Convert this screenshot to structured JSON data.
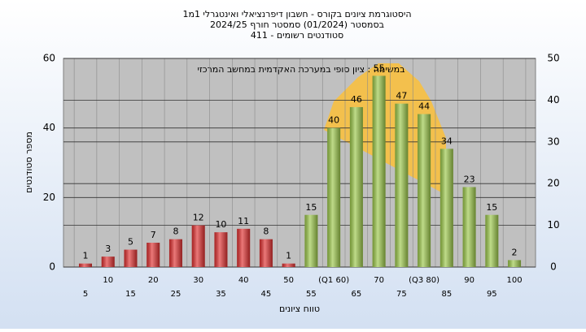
{
  "chart_data": {
    "type": "bar",
    "title": "היסטוגרמת ציונים בקורס - חשבון דיפרנציאלי ואינטגרלי 1מ1",
    "subtitle": "בסמסטר  (01/2024)  סמסטר חורף 2024/25",
    "subtitle2": "סטודנטים רשומים - 411",
    "annotation": "במשימה : ציון סופי במערכת האקדמית במחשב המרכזי",
    "y_label": "מספר סטודנטים",
    "x_label": "טווח ציונים",
    "categories": [
      "5",
      "10",
      "15",
      "20",
      "25",
      "30",
      "35",
      "40",
      "45",
      "50",
      "55",
      "(Q1 60)",
      "65",
      "70",
      "75",
      "(Q3 80)",
      "85",
      "90",
      "95",
      "100"
    ],
    "values": [
      1,
      3,
      5,
      7,
      8,
      12,
      10,
      11,
      8,
      1,
      15,
      40,
      46,
      55,
      47,
      44,
      34,
      23,
      15,
      2
    ],
    "colors": [
      "#e03030",
      "#e03030",
      "#e03030",
      "#e03030",
      "#e03030",
      "#e03030",
      "#e03030",
      "#e03030",
      "#e03030",
      "#e03030",
      "#9cc84a",
      "#9cc84a",
      "#9cc84a",
      "#9cc84a",
      "#9cc84a",
      "#9cc84a",
      "#9cc84a",
      "#9cc84a",
      "#9cc84a",
      "#9cc84a"
    ],
    "ylim": [
      0,
      60
    ],
    "yticks": [
      0,
      20,
      40,
      60
    ],
    "y2lim": [
      0,
      50
    ],
    "y2ticks": [
      0,
      10,
      20,
      30,
      40,
      50
    ],
    "grid": true
  }
}
